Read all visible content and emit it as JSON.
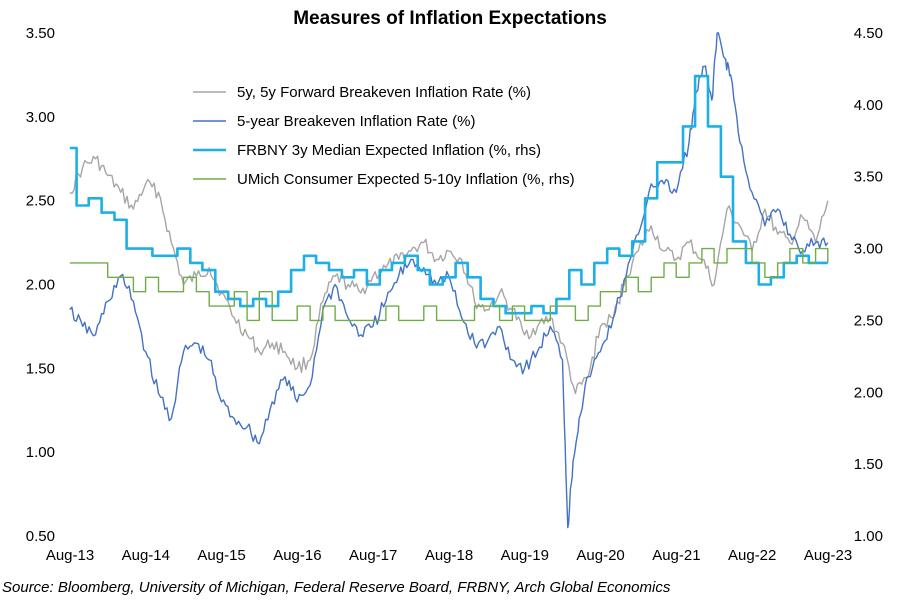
{
  "chart_data": {
    "type": "line",
    "title": "Measures of Inflation Expectations",
    "source": "Source: Bloomberg, University of Michigan, Federal Reserve Board, FRBNY, Arch Global Economics",
    "x_ticks": [
      "Aug-13",
      "Aug-14",
      "Aug-15",
      "Aug-16",
      "Aug-17",
      "Aug-18",
      "Aug-19",
      "Aug-20",
      "Aug-21",
      "Aug-22",
      "Aug-23"
    ],
    "x_range": [
      2013.583,
      2023.583
    ],
    "y_left": {
      "min": 0.5,
      "max": 3.5,
      "ticks": [
        "0.50",
        "1.00",
        "1.50",
        "2.00",
        "2.50",
        "3.00",
        "3.50"
      ]
    },
    "y_right": {
      "min": 1.0,
      "max": 4.5,
      "ticks": [
        "1.00",
        "1.50",
        "2.00",
        "2.50",
        "3.00",
        "3.50",
        "4.00",
        "4.50"
      ]
    },
    "series": [
      {
        "name": "5y, 5y Forward Breakeven Inflation Rate (%)",
        "color": "#a6a6a6",
        "axis": "left",
        "x": [
          2013.58,
          2013.75,
          2013.92,
          2014.08,
          2014.25,
          2014.42,
          2014.58,
          2014.75,
          2014.92,
          2015.08,
          2015.25,
          2015.42,
          2015.58,
          2015.75,
          2015.92,
          2016.08,
          2016.25,
          2016.42,
          2016.58,
          2016.75,
          2016.92,
          2017.08,
          2017.25,
          2017.42,
          2017.58,
          2017.75,
          2017.92,
          2018.08,
          2018.25,
          2018.42,
          2018.58,
          2018.75,
          2018.92,
          2019.08,
          2019.25,
          2019.42,
          2019.58,
          2019.75,
          2019.92,
          2020.08,
          2020.25,
          2020.42,
          2020.58,
          2020.75,
          2020.92,
          2021.08,
          2021.25,
          2021.42,
          2021.58,
          2021.75,
          2021.92,
          2022.08,
          2022.25,
          2022.42,
          2022.58,
          2022.75,
          2022.92,
          2023.08,
          2023.25,
          2023.42,
          2023.58
        ],
        "values": [
          2.55,
          2.7,
          2.75,
          2.65,
          2.55,
          2.45,
          2.6,
          2.55,
          2.25,
          2.0,
          2.05,
          2.1,
          1.95,
          1.8,
          1.7,
          1.6,
          1.65,
          1.6,
          1.5,
          1.55,
          1.9,
          2.05,
          2.0,
          1.95,
          2.05,
          2.1,
          2.15,
          2.2,
          2.25,
          2.15,
          2.2,
          2.15,
          1.9,
          1.85,
          1.95,
          1.85,
          1.7,
          1.75,
          1.8,
          1.65,
          1.35,
          1.45,
          1.75,
          1.8,
          2.05,
          2.2,
          2.35,
          2.2,
          2.15,
          2.25,
          2.15,
          2.0,
          2.45,
          2.35,
          2.2,
          2.45,
          2.3,
          2.25,
          2.4,
          2.25,
          2.5
        ]
      },
      {
        "name": "5-year Breakeven Inflation Rate (%)",
        "color": "#4472c4",
        "axis": "left",
        "x": [
          2013.58,
          2013.75,
          2013.92,
          2014.08,
          2014.25,
          2014.42,
          2014.58,
          2014.75,
          2014.92,
          2015.08,
          2015.25,
          2015.42,
          2015.58,
          2015.75,
          2015.92,
          2016.08,
          2016.25,
          2016.42,
          2016.58,
          2016.75,
          2016.92,
          2017.08,
          2017.25,
          2017.42,
          2017.58,
          2017.75,
          2017.92,
          2018.08,
          2018.25,
          2018.42,
          2018.58,
          2018.75,
          2018.92,
          2019.08,
          2019.25,
          2019.42,
          2019.58,
          2019.75,
          2019.92,
          2020.08,
          2020.15,
          2020.22,
          2020.3,
          2020.42,
          2020.58,
          2020.75,
          2020.92,
          2021.08,
          2021.25,
          2021.42,
          2021.58,
          2021.75,
          2021.85,
          2021.95,
          2022.05,
          2022.12,
          2022.22,
          2022.3,
          2022.42,
          2022.58,
          2022.75,
          2022.92,
          2023.08,
          2023.25,
          2023.42,
          2023.58
        ],
        "values": [
          1.85,
          1.75,
          1.7,
          1.9,
          2.05,
          1.9,
          1.6,
          1.35,
          1.2,
          1.6,
          1.65,
          1.55,
          1.3,
          1.2,
          1.15,
          1.05,
          1.3,
          1.45,
          1.3,
          1.4,
          1.85,
          2.0,
          1.8,
          1.7,
          1.75,
          1.9,
          2.05,
          2.15,
          2.1,
          2.0,
          2.05,
          1.8,
          1.65,
          1.65,
          1.75,
          1.55,
          1.5,
          1.6,
          1.75,
          1.55,
          0.55,
          0.95,
          1.2,
          1.45,
          1.6,
          1.8,
          2.05,
          2.3,
          2.6,
          2.6,
          2.55,
          2.85,
          3.15,
          3.3,
          3.1,
          3.5,
          3.35,
          3.25,
          2.85,
          2.55,
          2.35,
          2.45,
          2.3,
          2.2,
          2.25,
          2.25
        ]
      },
      {
        "name": "FRBNY 3y Median Expected Inflation (%, rhs)",
        "color": "#1cb0e6",
        "axis": "right",
        "x": [
          2013.58,
          2013.67,
          2013.83,
          2014.0,
          2014.17,
          2014.33,
          2014.5,
          2014.67,
          2014.83,
          2015.0,
          2015.17,
          2015.33,
          2015.5,
          2015.67,
          2015.83,
          2016.0,
          2016.17,
          2016.33,
          2016.5,
          2016.67,
          2016.83,
          2017.0,
          2017.17,
          2017.33,
          2017.5,
          2017.67,
          2017.83,
          2018.0,
          2018.17,
          2018.33,
          2018.5,
          2018.67,
          2018.83,
          2019.0,
          2019.17,
          2019.33,
          2019.5,
          2019.67,
          2019.83,
          2020.0,
          2020.17,
          2020.33,
          2020.5,
          2020.67,
          2020.83,
          2021.0,
          2021.17,
          2021.33,
          2021.5,
          2021.67,
          2021.83,
          2022.0,
          2022.17,
          2022.33,
          2022.5,
          2022.67,
          2022.83,
          2023.0,
          2023.17,
          2023.33,
          2023.58
        ],
        "values": [
          3.7,
          3.3,
          3.35,
          3.25,
          3.2,
          3.0,
          3.0,
          2.95,
          2.95,
          3.0,
          2.9,
          2.85,
          2.7,
          2.65,
          2.6,
          2.65,
          2.6,
          2.7,
          2.85,
          2.95,
          2.9,
          2.85,
          2.8,
          2.85,
          2.75,
          2.85,
          2.9,
          2.95,
          2.85,
          2.75,
          2.8,
          2.9,
          2.8,
          2.65,
          2.6,
          2.55,
          2.55,
          2.6,
          2.55,
          2.65,
          2.85,
          2.75,
          2.9,
          3.0,
          2.95,
          3.05,
          3.35,
          3.6,
          3.6,
          3.85,
          4.2,
          3.85,
          3.5,
          3.05,
          2.9,
          2.75,
          2.8,
          2.9,
          2.95,
          2.9,
          2.9
        ]
      },
      {
        "name": "UMich Consumer Expected 5-10y Inflation (%, rhs)",
        "color": "#70ad47",
        "axis": "right",
        "x": [
          2013.58,
          2013.75,
          2013.92,
          2014.08,
          2014.25,
          2014.42,
          2014.58,
          2014.75,
          2014.92,
          2015.08,
          2015.25,
          2015.42,
          2015.58,
          2015.75,
          2015.92,
          2016.08,
          2016.25,
          2016.42,
          2016.58,
          2016.75,
          2016.92,
          2017.08,
          2017.25,
          2017.42,
          2017.58,
          2017.75,
          2017.92,
          2018.08,
          2018.25,
          2018.42,
          2018.58,
          2018.75,
          2018.92,
          2019.08,
          2019.25,
          2019.42,
          2019.58,
          2019.75,
          2019.92,
          2020.08,
          2020.25,
          2020.42,
          2020.58,
          2020.75,
          2020.92,
          2021.08,
          2021.25,
          2021.42,
          2021.58,
          2021.75,
          2021.92,
          2022.08,
          2022.25,
          2022.42,
          2022.58,
          2022.75,
          2022.92,
          2023.08,
          2023.25,
          2023.42,
          2023.58
        ],
        "values": [
          2.9,
          2.9,
          2.9,
          2.8,
          2.8,
          2.7,
          2.8,
          2.7,
          2.7,
          2.8,
          2.7,
          2.6,
          2.6,
          2.7,
          2.5,
          2.7,
          2.5,
          2.5,
          2.6,
          2.5,
          2.6,
          2.5,
          2.5,
          2.5,
          2.5,
          2.6,
          2.5,
          2.5,
          2.6,
          2.5,
          2.5,
          2.5,
          2.6,
          2.6,
          2.5,
          2.6,
          2.5,
          2.5,
          2.6,
          2.6,
          2.5,
          2.6,
          2.7,
          2.7,
          2.8,
          2.7,
          2.8,
          2.9,
          2.8,
          2.9,
          3.0,
          2.9,
          3.0,
          3.0,
          2.9,
          2.8,
          2.9,
          3.0,
          2.9,
          3.0,
          2.9
        ]
      }
    ]
  }
}
